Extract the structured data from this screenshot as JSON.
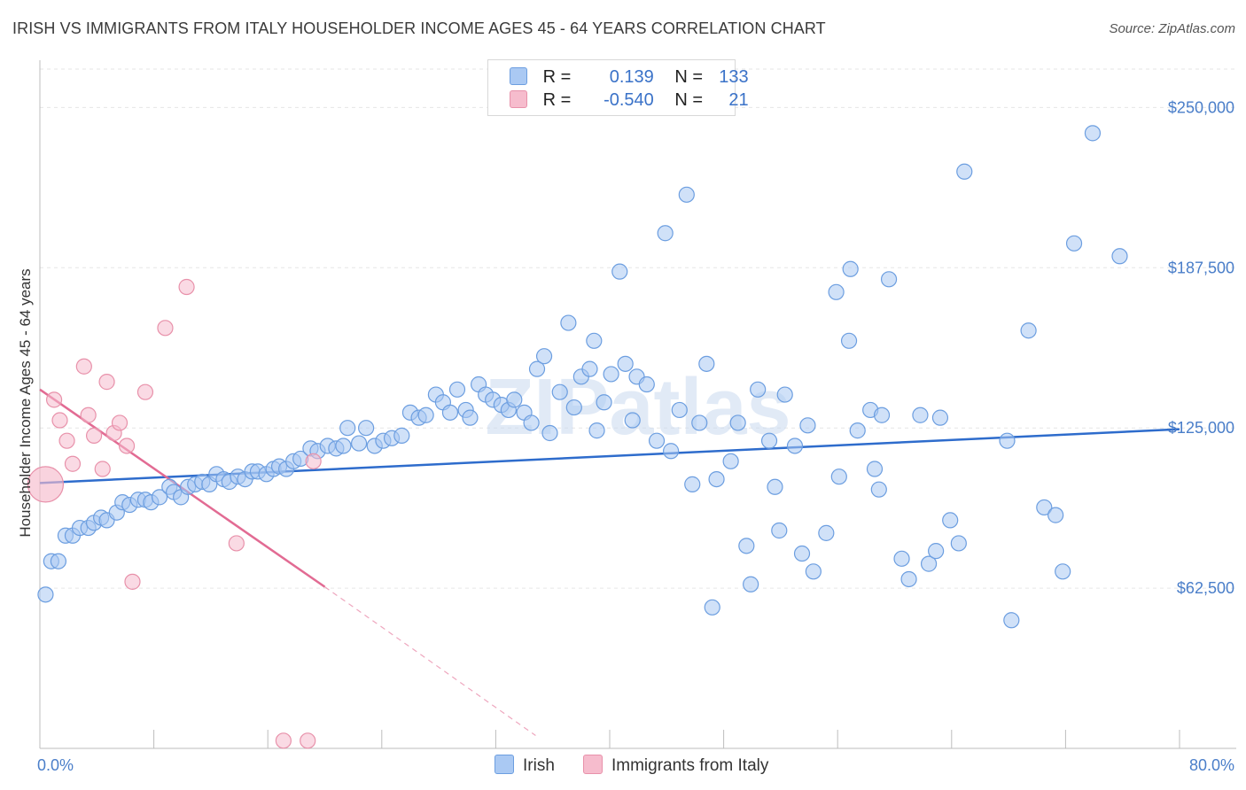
{
  "header": {
    "title": "IRISH VS IMMIGRANTS FROM ITALY HOUSEHOLDER INCOME AGES 45 - 64 YEARS CORRELATION CHART",
    "source": "Source: ZipAtlas.com"
  },
  "legend": {
    "rows": [
      {
        "r_label": "R =",
        "r_value": "0.139",
        "n_label": "N =",
        "n_value": "133",
        "color": "#aac9f3"
      },
      {
        "r_label": "R =",
        "r_value": "-0.540",
        "n_label": "N =",
        "n_value": "21",
        "color": "#f6bccd"
      }
    ]
  },
  "bottom_legend": {
    "series1": "Irish",
    "series2": "Immigrants from Italy"
  },
  "watermark": "ZIPatlas",
  "chart_data": {
    "type": "scatter",
    "title": "IRISH VS IMMIGRANTS FROM ITALY HOUSEHOLDER INCOME AGES 45 - 64 YEARS CORRELATION CHART",
    "ylabel": "Householder Income Ages 45 - 64 years",
    "xlabel": "",
    "xlim": [
      0,
      80
    ],
    "ylim": [
      0,
      265000
    ],
    "x_tick_labels": [
      "0.0%",
      "80.0%"
    ],
    "y_ticks": [
      62500,
      125000,
      187500,
      250000
    ],
    "y_tick_labels": [
      "$62,500",
      "$125,000",
      "$187,500",
      "$250,000"
    ],
    "grid": true,
    "legend_position": "top-center",
    "series": [
      {
        "name": "Irish",
        "color": "#aac9f3",
        "stroke": "#6c9ee0",
        "trend": {
          "x": [
            0,
            80
          ],
          "y": [
            103500,
            124500
          ],
          "color": "#2e6ccc"
        },
        "points": [
          [
            0.4,
            60000
          ],
          [
            0.8,
            73000
          ],
          [
            1.3,
            73000
          ],
          [
            1.8,
            83000
          ],
          [
            2.3,
            83000
          ],
          [
            2.8,
            86000
          ],
          [
            3.4,
            86000
          ],
          [
            3.8,
            88000
          ],
          [
            4.3,
            90000
          ],
          [
            4.7,
            89000
          ],
          [
            5.4,
            92000
          ],
          [
            5.8,
            96000
          ],
          [
            6.3,
            95000
          ],
          [
            6.9,
            97000
          ],
          [
            7.4,
            97000
          ],
          [
            7.8,
            96000
          ],
          [
            8.4,
            98000
          ],
          [
            9.1,
            102000
          ],
          [
            9.4,
            100000
          ],
          [
            9.9,
            98000
          ],
          [
            10.4,
            102000
          ],
          [
            10.9,
            103000
          ],
          [
            11.4,
            104000
          ],
          [
            11.9,
            103000
          ],
          [
            12.4,
            107000
          ],
          [
            12.9,
            105000
          ],
          [
            13.3,
            104000
          ],
          [
            13.9,
            106000
          ],
          [
            14.4,
            105000
          ],
          [
            14.9,
            108000
          ],
          [
            15.3,
            108000
          ],
          [
            15.9,
            107000
          ],
          [
            16.4,
            109000
          ],
          [
            16.8,
            110000
          ],
          [
            17.3,
            109000
          ],
          [
            17.8,
            112000
          ],
          [
            18.3,
            113000
          ],
          [
            19.0,
            117000
          ],
          [
            19.5,
            116000
          ],
          [
            20.2,
            118000
          ],
          [
            20.8,
            117000
          ],
          [
            21.3,
            118000
          ],
          [
            21.6,
            125000
          ],
          [
            22.4,
            119000
          ],
          [
            22.9,
            125000
          ],
          [
            23.5,
            118000
          ],
          [
            24.1,
            120000
          ],
          [
            24.7,
            121000
          ],
          [
            25.4,
            122000
          ],
          [
            26.0,
            131000
          ],
          [
            26.6,
            129000
          ],
          [
            27.1,
            130000
          ],
          [
            27.8,
            138000
          ],
          [
            28.3,
            135000
          ],
          [
            28.8,
            131000
          ],
          [
            29.3,
            140000
          ],
          [
            29.9,
            132000
          ],
          [
            30.2,
            129000
          ],
          [
            30.8,
            142000
          ],
          [
            31.3,
            138000
          ],
          [
            31.8,
            136000
          ],
          [
            32.4,
            134000
          ],
          [
            32.9,
            132000
          ],
          [
            33.3,
            136000
          ],
          [
            34.0,
            131000
          ],
          [
            34.5,
            127000
          ],
          [
            34.9,
            148000
          ],
          [
            35.4,
            153000
          ],
          [
            35.8,
            123000
          ],
          [
            36.5,
            139000
          ],
          [
            37.1,
            166000
          ],
          [
            37.5,
            133000
          ],
          [
            38.0,
            145000
          ],
          [
            38.6,
            148000
          ],
          [
            38.9,
            159000
          ],
          [
            39.1,
            124000
          ],
          [
            39.6,
            135000
          ],
          [
            40.1,
            146000
          ],
          [
            40.7,
            186000
          ],
          [
            41.1,
            150000
          ],
          [
            41.6,
            128000
          ],
          [
            41.9,
            145000
          ],
          [
            42.6,
            142000
          ],
          [
            43.3,
            120000
          ],
          [
            43.9,
            201000
          ],
          [
            44.3,
            116000
          ],
          [
            44.9,
            132000
          ],
          [
            45.4,
            216000
          ],
          [
            45.8,
            103000
          ],
          [
            46.3,
            127000
          ],
          [
            46.8,
            150000
          ],
          [
            47.2,
            55000
          ],
          [
            47.5,
            105000
          ],
          [
            48.5,
            112000
          ],
          [
            49.0,
            127000
          ],
          [
            49.6,
            79000
          ],
          [
            49.9,
            64000
          ],
          [
            50.4,
            140000
          ],
          [
            51.2,
            120000
          ],
          [
            51.6,
            102000
          ],
          [
            51.9,
            85000
          ],
          [
            52.3,
            138000
          ],
          [
            53.0,
            118000
          ],
          [
            53.5,
            76000
          ],
          [
            53.9,
            126000
          ],
          [
            54.3,
            69000
          ],
          [
            55.2,
            84000
          ],
          [
            55.9,
            178000
          ],
          [
            56.1,
            106000
          ],
          [
            56.8,
            159000
          ],
          [
            56.9,
            187000
          ],
          [
            57.4,
            124000
          ],
          [
            58.3,
            132000
          ],
          [
            58.6,
            109000
          ],
          [
            58.9,
            101000
          ],
          [
            59.1,
            130000
          ],
          [
            59.6,
            183000
          ],
          [
            60.5,
            74000
          ],
          [
            61.0,
            66000
          ],
          [
            61.8,
            130000
          ],
          [
            62.4,
            72000
          ],
          [
            62.9,
            77000
          ],
          [
            63.2,
            129000
          ],
          [
            63.9,
            89000
          ],
          [
            64.5,
            80000
          ],
          [
            64.9,
            225000
          ],
          [
            67.9,
            120000
          ],
          [
            68.2,
            50000
          ],
          [
            69.4,
            163000
          ],
          [
            70.5,
            94000
          ],
          [
            71.3,
            91000
          ],
          [
            71.8,
            69000
          ],
          [
            72.6,
            197000
          ],
          [
            73.9,
            240000
          ],
          [
            75.8,
            192000
          ]
        ]
      },
      {
        "name": "Immigrants from Italy",
        "color": "#f6bccd",
        "stroke": "#e891aa",
        "trend": {
          "x": [
            0,
            20
          ],
          "y": [
            140000,
            63000
          ],
          "color": "#e26b93"
        },
        "trend_extension": {
          "x": [
            20,
            34.8
          ],
          "y": [
            63000,
            5000
          ]
        },
        "points": [
          [
            0.4,
            103000
          ],
          [
            1.0,
            136000
          ],
          [
            1.4,
            128000
          ],
          [
            1.9,
            120000
          ],
          [
            2.3,
            111000
          ],
          [
            3.1,
            149000
          ],
          [
            3.4,
            130000
          ],
          [
            3.8,
            122000
          ],
          [
            4.4,
            109000
          ],
          [
            4.7,
            143000
          ],
          [
            5.2,
            123000
          ],
          [
            5.6,
            127000
          ],
          [
            6.1,
            118000
          ],
          [
            6.5,
            65000
          ],
          [
            7.4,
            139000
          ],
          [
            8.8,
            164000
          ],
          [
            10.3,
            180000
          ],
          [
            13.8,
            80000
          ],
          [
            17.1,
            3000
          ],
          [
            18.8,
            3000
          ],
          [
            19.2,
            112000
          ]
        ]
      }
    ]
  }
}
